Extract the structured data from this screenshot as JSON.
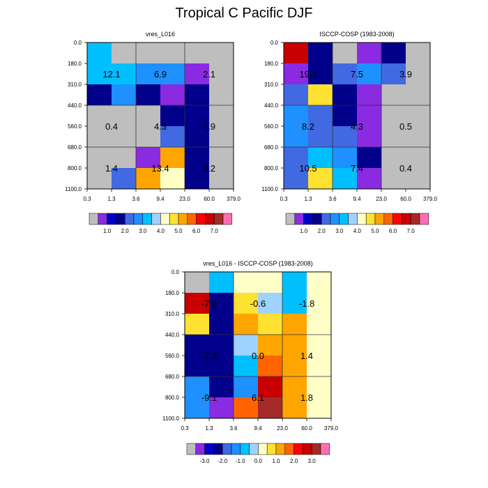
{
  "figure_title": "Tropical C Pacific DJF",
  "chart_data": [
    {
      "type": "heatmap",
      "title": "vres_L016",
      "x_ticks": [
        "0.3",
        "1.3",
        "3.6",
        "9.4",
        "23.0",
        "60.0",
        "379.0"
      ],
      "y_ticks": [
        "0.0",
        "180.0",
        "310.0",
        "440.0",
        "560.0",
        "680.0",
        "800.0",
        "1100.0"
      ],
      "cells": [
        [
          6,
          0,
          0,
          0,
          0,
          0
        ],
        [
          6,
          6,
          5,
          5,
          1,
          0
        ],
        [
          3,
          5,
          3,
          1,
          3,
          0
        ],
        [
          0,
          0,
          0,
          3,
          3,
          0
        ],
        [
          0,
          0,
          0,
          4,
          3,
          0
        ],
        [
          0,
          0,
          1,
          10,
          3,
          0
        ],
        [
          0,
          4,
          10,
          8,
          3,
          0
        ]
      ],
      "block_labels": [
        {
          "row": 0,
          "col": 0,
          "text": "12.1"
        },
        {
          "row": 0,
          "col": 1,
          "text": "6.9"
        },
        {
          "row": 0,
          "col": 2,
          "text": "2.1"
        },
        {
          "row": 1,
          "col": 0,
          "text": "0.4"
        },
        {
          "row": 1,
          "col": 1,
          "text": "4.3"
        },
        {
          "row": 1,
          "col": 2,
          "text": "1.9"
        },
        {
          "row": 2,
          "col": 0,
          "text": "1.4"
        },
        {
          "row": 2,
          "col": 1,
          "text": "13.4"
        },
        {
          "row": 2,
          "col": 2,
          "text": "2.2"
        }
      ],
      "colorbar_labels": [
        "1.0",
        "2.0",
        "3.0",
        "4.0",
        "5.0",
        "6.0",
        "7.0"
      ]
    },
    {
      "type": "heatmap",
      "title": "ISCCP-COSP (1983-2008)",
      "x_ticks": [
        "0.3",
        "1.3",
        "3.6",
        "9.4",
        "23.0",
        "60.0",
        "379.0"
      ],
      "y_ticks": [
        "0.0",
        "180.0",
        "310.0",
        "440.0",
        "560.0",
        "680.0",
        "800.0",
        "1100.0"
      ],
      "cells": [
        [
          13,
          3,
          0,
          1,
          3,
          0
        ],
        [
          1,
          3,
          4,
          5,
          4,
          0
        ],
        [
          4,
          9,
          3,
          1,
          0,
          0
        ],
        [
          5,
          4,
          3,
          1,
          0,
          0
        ],
        [
          5,
          4,
          4,
          1,
          0,
          0
        ],
        [
          4,
          6,
          5,
          3,
          0,
          0
        ],
        [
          4,
          9,
          6,
          1,
          0,
          0
        ]
      ],
      "block_labels": [
        {
          "row": 0,
          "col": 0,
          "text": "19.1"
        },
        {
          "row": 0,
          "col": 1,
          "text": "7.5"
        },
        {
          "row": 0,
          "col": 2,
          "text": "3.9"
        },
        {
          "row": 1,
          "col": 0,
          "text": "8.2"
        },
        {
          "row": 1,
          "col": 1,
          "text": "4.3"
        },
        {
          "row": 1,
          "col": 2,
          "text": "0.5"
        },
        {
          "row": 2,
          "col": 0,
          "text": "10.5"
        },
        {
          "row": 2,
          "col": 1,
          "text": "7.4"
        },
        {
          "row": 2,
          "col": 2,
          "text": "0.4"
        }
      ],
      "colorbar_labels": [
        "1.0",
        "2.0",
        "3.0",
        "4.0",
        "5.0",
        "6.0",
        "7.0"
      ]
    },
    {
      "type": "heatmap",
      "title": "vres_L016 - ISCCP-COSP (1983-2008)",
      "x_ticks": [
        "0.3",
        "1.3",
        "3.6",
        "9.4",
        "23.0",
        "60.0",
        "379.0"
      ],
      "y_ticks": [
        "0.0",
        "180.0",
        "310.0",
        "440.0",
        "560.0",
        "680.0",
        "800.0",
        "1100.0"
      ],
      "cells": [
        [
          0,
          6,
          8,
          8,
          6,
          8
        ],
        [
          13,
          3,
          9,
          7,
          6,
          8
        ],
        [
          9,
          3,
          10,
          9,
          10,
          8
        ],
        [
          3,
          3,
          7,
          10,
          10,
          8
        ],
        [
          3,
          3,
          6,
          11,
          10,
          8
        ],
        [
          5,
          3,
          5,
          13,
          10,
          8
        ],
        [
          5,
          1,
          11,
          14,
          10,
          8
        ]
      ],
      "block_labels": [
        {
          "row": 0,
          "col": 0,
          "text": "-7.0"
        },
        {
          "row": 0,
          "col": 1,
          "text": "-0.6"
        },
        {
          "row": 0,
          "col": 2,
          "text": "-1.8"
        },
        {
          "row": 1,
          "col": 0,
          "text": "-7.8"
        },
        {
          "row": 1,
          "col": 1,
          "text": "0.0"
        },
        {
          "row": 1,
          "col": 2,
          "text": "1.4"
        },
        {
          "row": 2,
          "col": 0,
          "text": "-9.1"
        },
        {
          "row": 2,
          "col": 1,
          "text": "6.1"
        },
        {
          "row": 2,
          "col": 2,
          "text": "1.8"
        }
      ],
      "colorbar_labels": [
        "-3.0",
        "-2.0",
        "-1.0",
        "0.0",
        "1.0",
        "2.0",
        "3.0"
      ]
    }
  ],
  "palette": [
    "#bebebe",
    "#8a2be2",
    "#0000cd",
    "#00008b",
    "#4169e1",
    "#1e90ff",
    "#00bfff",
    "#a0d2ff",
    "#ffffc8",
    "#ffe132",
    "#ffa500",
    "#ff6400",
    "#ff0000",
    "#c80000",
    "#a52a2a",
    "#ff6eb4"
  ]
}
